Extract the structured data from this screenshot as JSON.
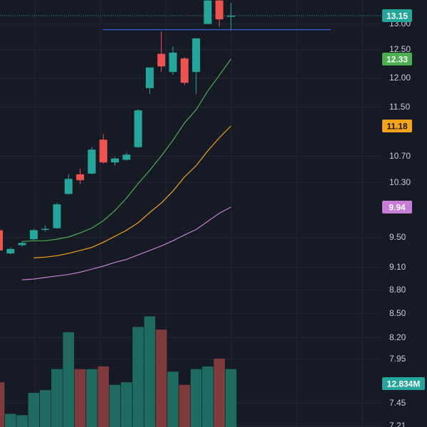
{
  "colors": {
    "background": "#161a25",
    "grid": "#232733",
    "axis_text": "#c9ccd4",
    "up": "#26a69a",
    "down": "#ef5350",
    "vol_up": "#1f6b62",
    "vol_down": "#7f3a3e",
    "ma_fast": "#4caf50",
    "ma_mid": "#f7a21b",
    "ma_slow": "#c77dd6",
    "price_line": "#26a69a",
    "level_line": "#3d5fd9"
  },
  "chart_data": {
    "type": "candlestick",
    "grid": true,
    "legend": "none",
    "y_axis": {
      "side": "right",
      "ticks": [
        "13.00",
        "12.50",
        "12.00",
        "11.50",
        "10.70",
        "10.30",
        "9.50",
        "9.10",
        "8.80",
        "8.50",
        "8.20",
        "7.95",
        "7.45",
        "7.21"
      ]
    },
    "candles": [
      {
        "o": 9.6,
        "h": 9.65,
        "l": 9.3,
        "c": 9.32
      },
      {
        "o": 9.28,
        "h": 9.36,
        "l": 9.27,
        "c": 9.34
      },
      {
        "o": 9.39,
        "h": 9.44,
        "l": 9.37,
        "c": 9.42
      },
      {
        "o": 9.47,
        "h": 9.62,
        "l": 9.46,
        "c": 9.6
      },
      {
        "o": 9.62,
        "h": 9.67,
        "l": 9.58,
        "c": 9.62
      },
      {
        "o": 9.63,
        "h": 10.0,
        "l": 9.62,
        "c": 9.98
      },
      {
        "o": 10.13,
        "h": 10.42,
        "l": 10.12,
        "c": 10.35
      },
      {
        "o": 10.42,
        "h": 10.5,
        "l": 10.27,
        "c": 10.33
      },
      {
        "o": 10.43,
        "h": 10.84,
        "l": 10.42,
        "c": 10.8
      },
      {
        "o": 10.96,
        "h": 11.05,
        "l": 10.58,
        "c": 10.6
      },
      {
        "o": 10.6,
        "h": 10.68,
        "l": 10.55,
        "c": 10.66
      },
      {
        "o": 10.64,
        "h": 10.75,
        "l": 10.63,
        "c": 10.72
      },
      {
        "o": 10.84,
        "h": 11.46,
        "l": 10.83,
        "c": 11.44
      },
      {
        "o": 11.82,
        "h": 12.18,
        "l": 11.72,
        "c": 12.18
      },
      {
        "o": 12.42,
        "h": 12.85,
        "l": 12.1,
        "c": 12.2
      },
      {
        "o": 12.1,
        "h": 12.55,
        "l": 12.05,
        "c": 12.44
      },
      {
        "o": 12.34,
        "h": 12.36,
        "l": 11.87,
        "c": 11.91
      },
      {
        "o": 12.1,
        "h": 12.71,
        "l": 11.72,
        "c": 12.71
      },
      {
        "o": 12.99,
        "h": 13.6,
        "l": 12.99,
        "c": 13.45
      },
      {
        "o": 13.45,
        "h": 13.5,
        "l": 12.94,
        "c": 13.08
      },
      {
        "o": 13.13,
        "h": 13.4,
        "l": 12.88,
        "c": 13.15
      }
    ],
    "ma_fast": [
      9.44,
      9.45,
      9.45,
      9.47,
      9.5,
      9.56,
      9.63,
      9.74,
      9.89,
      10.07,
      10.28,
      10.48,
      10.7,
      10.95,
      11.23,
      11.45,
      11.77,
      12.04,
      12.33
    ],
    "ma_mid": [
      9.22,
      9.23,
      9.25,
      9.28,
      9.32,
      9.36,
      9.43,
      9.51,
      9.6,
      9.71,
      9.86,
      10.0,
      10.17,
      10.38,
      10.55,
      10.78,
      10.99,
      11.18
    ],
    "ma_slow": [
      8.93,
      8.94,
      8.96,
      8.98,
      9.0,
      9.03,
      9.07,
      9.11,
      9.16,
      9.2,
      9.26,
      9.32,
      9.38,
      9.45,
      9.53,
      9.61,
      9.73,
      9.85,
      9.94
    ],
    "volume": [
      3.4,
      1.0,
      0.9,
      2.6,
      2.8,
      4.4,
      7.2,
      4.4,
      4.4,
      4.6,
      3.2,
      3.4,
      7.6,
      8.4,
      7.4,
      4.2,
      3.2,
      4.4,
      4.6,
      5.2,
      4.4
    ],
    "volume_unit": "M",
    "level_line": 12.88,
    "last_price": 13.15,
    "badges": [
      {
        "label": "13.15",
        "value": 13.15,
        "color": "#26a69a",
        "text_color": "#ffffff"
      },
      {
        "label": "12.33",
        "value": 12.33,
        "color": "#4caf50",
        "text_color": "#ffffff"
      },
      {
        "label": "11.18",
        "value": 11.18,
        "color": "#f7a21b",
        "text_color": "#161a25"
      },
      {
        "label": "9.94",
        "value": 9.94,
        "color": "#c77dd6",
        "text_color": "#ffffff"
      }
    ],
    "volume_badge": {
      "label": "12.834M",
      "color": "#26a69a",
      "text_color": "#ffffff"
    }
  }
}
